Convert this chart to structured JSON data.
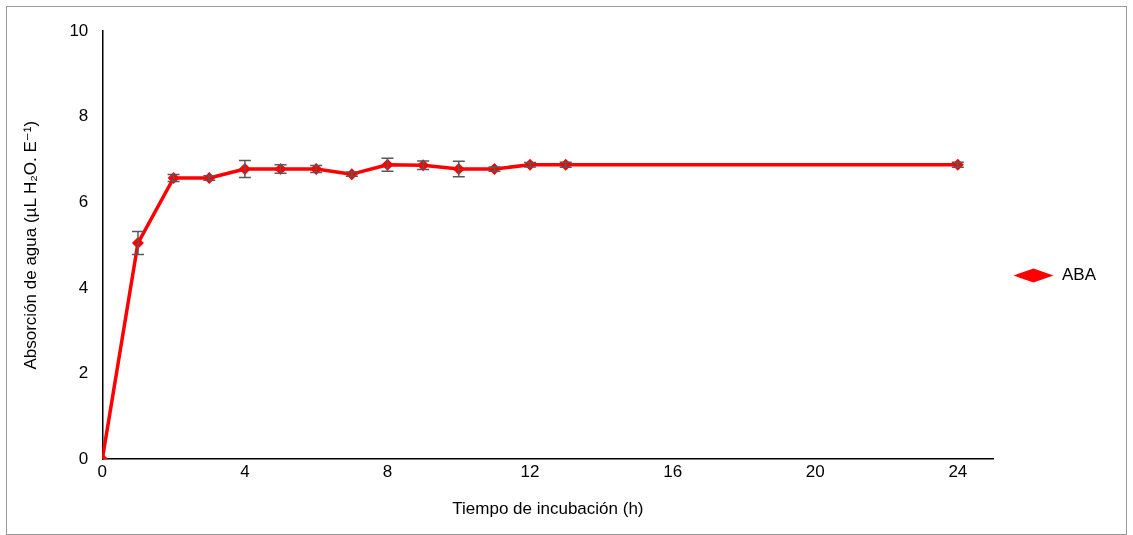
{
  "chart_data": {
    "type": "line",
    "xlabel": "Tiempo de incubación (h)",
    "ylabel": "Absorción de agua (µL H₂O. E⁻¹)",
    "x": [
      0,
      1,
      2,
      3,
      4,
      5,
      6,
      7,
      8,
      9,
      10,
      11,
      12,
      13,
      24
    ],
    "series": [
      {
        "name": "ABA",
        "color": "#ff0000",
        "values": [
          0,
          5.05,
          6.57,
          6.57,
          6.78,
          6.78,
          6.78,
          6.66,
          6.88,
          6.87,
          6.78,
          6.78,
          6.88,
          6.88,
          6.88
        ],
        "errors": [
          null,
          0.27,
          0.08,
          0.05,
          0.2,
          0.1,
          0.08,
          0.05,
          0.15,
          0.1,
          0.18,
          0.05,
          0.05,
          0.06,
          0.06
        ]
      }
    ],
    "xlim": [
      0,
      25
    ],
    "xticks": [
      0,
      4,
      8,
      12,
      16,
      20,
      24
    ],
    "ylim": [
      0,
      10
    ],
    "yticks": [
      0,
      2,
      4,
      6,
      8,
      10
    ],
    "grid": false,
    "legend": "right",
    "marker": "diamond",
    "line_style": "solid"
  }
}
